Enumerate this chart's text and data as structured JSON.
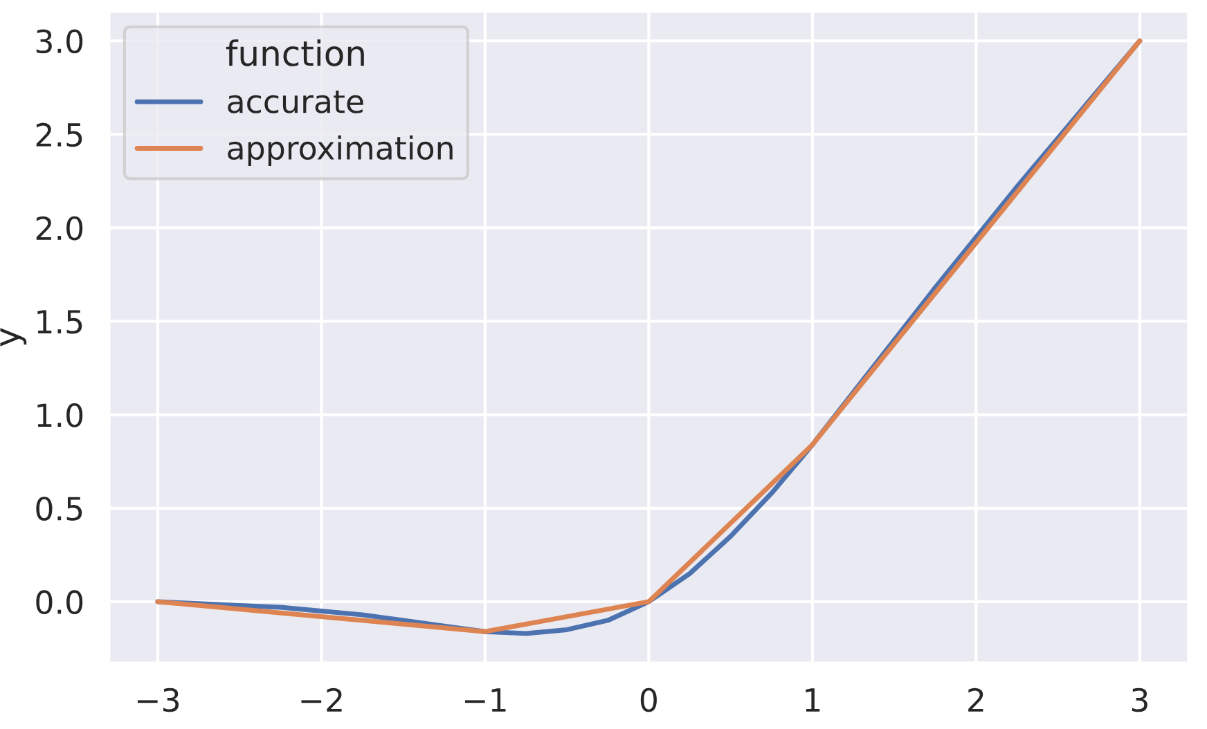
{
  "chart_data": {
    "type": "line",
    "ylabel": "y",
    "legend_title": "function",
    "legend": "top left",
    "grid": true,
    "series": [
      {
        "name": "accurate",
        "color": "#4c72b0",
        "x": [
          -3,
          -2.75,
          -2.5,
          -2.25,
          -2,
          -1.75,
          -1.5,
          -1.25,
          -1,
          -0.75,
          -0.5,
          -0.25,
          0,
          0.25,
          0.5,
          0.75,
          1,
          1.25,
          1.5,
          1.75,
          2,
          2.25,
          2.5,
          2.75,
          3
        ],
        "values": [
          0.0,
          -0.01,
          -0.02,
          -0.03,
          -0.05,
          -0.07,
          -0.1,
          -0.13,
          -0.16,
          -0.17,
          -0.15,
          -0.1,
          0.0,
          0.15,
          0.35,
          0.58,
          0.84,
          1.12,
          1.4,
          1.68,
          1.95,
          2.22,
          2.48,
          2.74,
          3.0
        ]
      },
      {
        "name": "approximation",
        "color": "#dd8452",
        "x": [
          -3,
          -1,
          0,
          1,
          3
        ],
        "values": [
          0.0,
          -0.16,
          0.0,
          0.84,
          3.0
        ]
      }
    ],
    "xlim": [
      -3.3,
      3.3
    ],
    "ylim": [
      -0.33,
      3.16
    ],
    "xticks": [
      {
        "value": -3,
        "label": "−3"
      },
      {
        "value": -2,
        "label": "−2"
      },
      {
        "value": -1,
        "label": "−1"
      },
      0,
      1,
      2,
      3
    ],
    "yticks": [
      {
        "value": 0,
        "label": "0.0"
      },
      {
        "value": 0.5,
        "label": "0.5"
      },
      {
        "value": 1,
        "label": "1.0"
      },
      {
        "value": 1.5,
        "label": "1.5"
      },
      {
        "value": 2,
        "label": "2.0"
      },
      {
        "value": 2.5,
        "label": "2.5"
      },
      {
        "value": 3,
        "label": "3.0"
      }
    ]
  }
}
